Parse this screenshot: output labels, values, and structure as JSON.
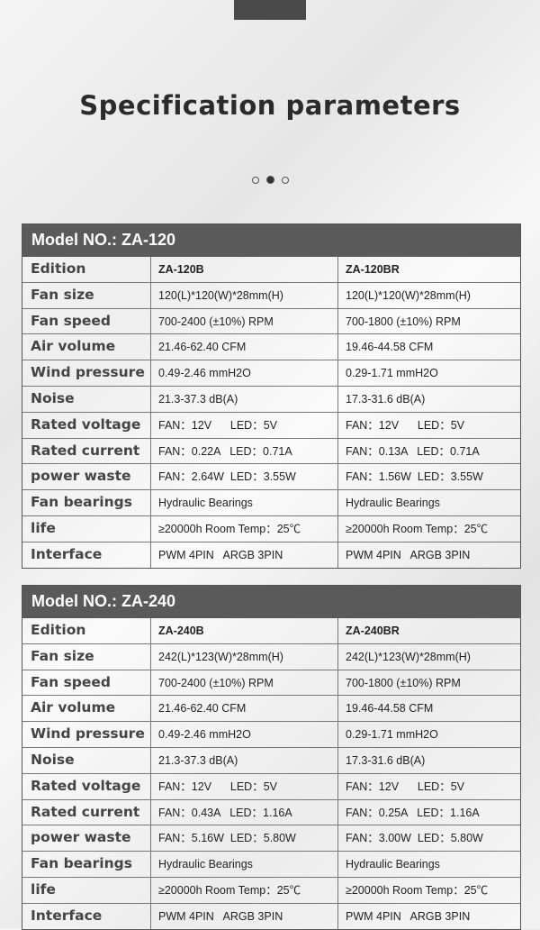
{
  "title": "Specification parameters",
  "tables": [
    {
      "header": "Model NO.:  ZA-120",
      "rows": [
        [
          "Edition",
          "ZA-120B",
          "ZA-120BR"
        ],
        [
          "Fan size",
          "120(L)*120(W)*28mm(H)",
          "120(L)*120(W)*28mm(H)"
        ],
        [
          "Fan speed",
          "700-2400 (±10%) RPM",
          "700-1800 (±10%) RPM"
        ],
        [
          "Air volume",
          "21.46-62.40 CFM",
          "19.46-44.58 CFM"
        ],
        [
          "Wind pressure",
          "0.49-2.46 mmH2O",
          "0.29-1.71 mmH2O"
        ],
        [
          "Noise",
          "21.3-37.3 dB(A)",
          "17.3-31.6 dB(A)"
        ],
        [
          "Rated voltage",
          "FAN：12V      LED：5V",
          "FAN：12V      LED：5V"
        ],
        [
          "Rated current",
          "FAN：0.22A   LED：0.71A",
          "FAN：0.13A   LED：0.71A"
        ],
        [
          "power waste",
          "FAN：2.64W  LED：3.55W",
          "FAN：1.56W  LED：3.55W"
        ],
        [
          "Fan bearings",
          "Hydraulic Bearings",
          "Hydraulic Bearings"
        ],
        [
          "life",
          "≥20000h Room Temp：25℃",
          "≥20000h Room Temp：25℃"
        ],
        [
          "Interface",
          "PWM 4PIN   ARGB 3PIN",
          "PWM 4PIN   ARGB 3PIN"
        ]
      ]
    },
    {
      "header": "Model NO.:  ZA-240",
      "rows": [
        [
          "Edition",
          "ZA-240B",
          "ZA-240BR"
        ],
        [
          "Fan size",
          "242(L)*123(W)*28mm(H)",
          "242(L)*123(W)*28mm(H)"
        ],
        [
          "Fan speed",
          "700-2400 (±10%) RPM",
          "700-1800 (±10%) RPM"
        ],
        [
          "Air volume",
          "21.46-62.40 CFM",
          "19.46-44.58 CFM"
        ],
        [
          "Wind pressure",
          "0.49-2.46 mmH2O",
          "0.29-1.71 mmH2O"
        ],
        [
          "Noise",
          "21.3-37.3 dB(A)",
          "17.3-31.6 dB(A)"
        ],
        [
          "Rated voltage",
          "FAN：12V      LED：5V",
          "FAN：12V      LED：5V"
        ],
        [
          "Rated current",
          "FAN：0.43A   LED：1.16A",
          "FAN：0.25A   LED：1.16A"
        ],
        [
          "power waste",
          "FAN：5.16W  LED：5.80W",
          "FAN：3.00W  LED：5.80W"
        ],
        [
          "Fan bearings",
          "Hydraulic Bearings",
          "Hydraulic Bearings"
        ],
        [
          "life",
          "≥20000h Room Temp：25℃",
          "≥20000h Room Temp：25℃"
        ],
        [
          "Interface",
          "PWM 4PIN   ARGB 3PIN",
          "PWM 4PIN   ARGB 3PIN"
        ]
      ]
    }
  ],
  "carousel": {
    "active_index": 1,
    "count": 3
  }
}
